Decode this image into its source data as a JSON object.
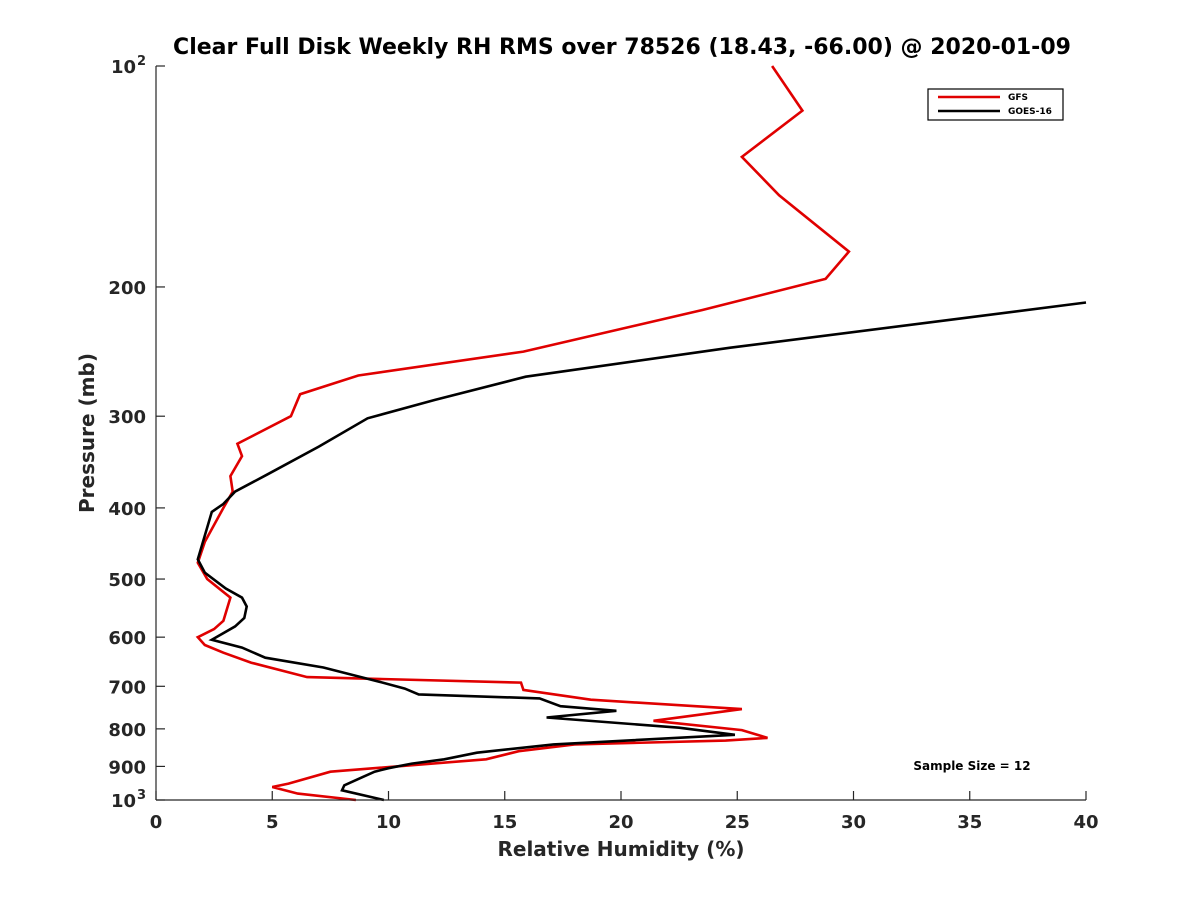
{
  "chart_data": {
    "type": "line",
    "title": "Clear Full Disk Weekly RH RMS over 78526 (18.43, -66.00) @ 2020-01-09",
    "xlabel": "Relative Humidity (%)",
    "ylabel": "Pressure (mb)",
    "xlim": [
      0,
      40
    ],
    "ylim": [
      100,
      1000
    ],
    "y_scale": "log",
    "y_reversed": true,
    "grid": false,
    "legend_position": "top-right",
    "x_ticks": [
      "0",
      "5",
      "10",
      "15",
      "20",
      "25",
      "30",
      "35",
      "40"
    ],
    "x_tick_values": [
      0,
      5,
      10,
      15,
      20,
      25,
      30,
      35,
      40
    ],
    "y_ticks": [
      {
        "value": 100,
        "base": "10",
        "exp": "2"
      },
      {
        "value": 200,
        "base": "200",
        "exp": ""
      },
      {
        "value": 300,
        "base": "300",
        "exp": ""
      },
      {
        "value": 400,
        "base": "400",
        "exp": ""
      },
      {
        "value": 500,
        "base": "500",
        "exp": ""
      },
      {
        "value": 600,
        "base": "600",
        "exp": ""
      },
      {
        "value": 700,
        "base": "700",
        "exp": ""
      },
      {
        "value": 800,
        "base": "800",
        "exp": ""
      },
      {
        "value": 900,
        "base": "900",
        "exp": ""
      },
      {
        "value": 1000,
        "base": "10",
        "exp": "3"
      }
    ],
    "annotation": "Sample Size = 12",
    "series": [
      {
        "name": "GFS",
        "color": "#e00000",
        "points": [
          [
            26.5,
            100
          ],
          [
            27.8,
            115
          ],
          [
            25.2,
            133
          ],
          [
            26.8,
            150
          ],
          [
            29.8,
            179
          ],
          [
            28.8,
            195
          ],
          [
            23.5,
            215
          ],
          [
            15.8,
            245
          ],
          [
            8.7,
            264
          ],
          [
            6.2,
            280
          ],
          [
            5.8,
            300
          ],
          [
            3.5,
            327
          ],
          [
            3.7,
            340
          ],
          [
            3.2,
            362
          ],
          [
            3.3,
            380
          ],
          [
            2.9,
            400
          ],
          [
            2.1,
            445
          ],
          [
            1.8,
            475
          ],
          [
            2.2,
            500
          ],
          [
            3.2,
            530
          ],
          [
            2.9,
            570
          ],
          [
            2.5,
            585
          ],
          [
            1.8,
            600
          ],
          [
            2.1,
            615
          ],
          [
            2.9,
            630
          ],
          [
            4.1,
            650
          ],
          [
            6.5,
            680
          ],
          [
            15.7,
            692
          ],
          [
            15.8,
            708
          ],
          [
            18.7,
            730
          ],
          [
            25.2,
            752
          ],
          [
            21.4,
            780
          ],
          [
            25.2,
            803
          ],
          [
            26.3,
            823
          ],
          [
            24.5,
            830
          ],
          [
            18.0,
            840
          ],
          [
            15.6,
            858
          ],
          [
            14.2,
            880
          ],
          [
            7.5,
            915
          ],
          [
            5.7,
            950
          ],
          [
            5.0,
            960
          ],
          [
            6.1,
            980
          ],
          [
            8.6,
            1000
          ]
        ]
      },
      {
        "name": "GOES-16",
        "color": "#000000",
        "points": [
          [
            40.0,
            210
          ],
          [
            35.0,
            220
          ],
          [
            24.7,
            242
          ],
          [
            15.9,
            265
          ],
          [
            12.0,
            285
          ],
          [
            9.1,
            302
          ],
          [
            7.0,
            330
          ],
          [
            4.8,
            360
          ],
          [
            3.4,
            380
          ],
          [
            2.9,
            395
          ],
          [
            2.4,
            405
          ],
          [
            1.8,
            470
          ],
          [
            2.1,
            490
          ],
          [
            3.0,
            515
          ],
          [
            3.7,
            530
          ],
          [
            3.9,
            545
          ],
          [
            3.8,
            565
          ],
          [
            3.4,
            580
          ],
          [
            2.4,
            605
          ],
          [
            3.7,
            620
          ],
          [
            4.7,
            640
          ],
          [
            7.2,
            660
          ],
          [
            9.6,
            690
          ],
          [
            10.7,
            705
          ],
          [
            11.3,
            718
          ],
          [
            16.5,
            727
          ],
          [
            17.4,
            745
          ],
          [
            19.8,
            756
          ],
          [
            16.8,
            772
          ],
          [
            22.5,
            797
          ],
          [
            24.9,
            815
          ],
          [
            17.1,
            840
          ],
          [
            13.8,
            862
          ],
          [
            12.4,
            880
          ],
          [
            11.0,
            892
          ],
          [
            10.0,
            905
          ],
          [
            9.4,
            915
          ],
          [
            8.9,
            930
          ],
          [
            8.1,
            955
          ],
          [
            8.0,
            970
          ],
          [
            9.8,
            1000
          ]
        ]
      }
    ]
  }
}
